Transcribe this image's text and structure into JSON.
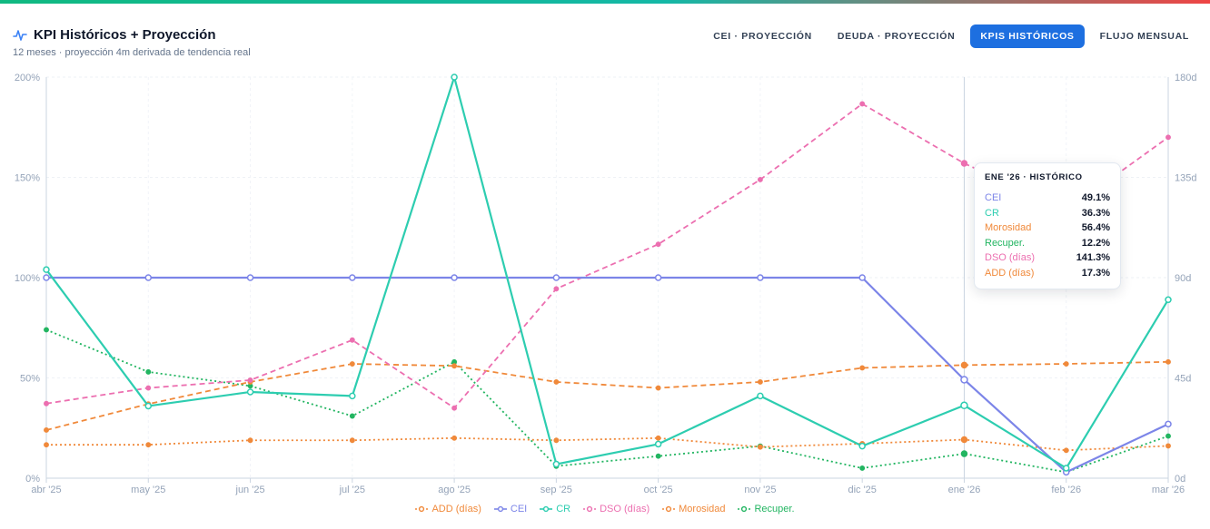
{
  "header": {
    "title": "KPI Históricos + Proyección",
    "subtitle": "12 meses · proyección 4m derivada de tendencia real",
    "title_icon": "activity-icon"
  },
  "tabs": [
    {
      "label": "CEI · PROYECCIÓN",
      "active": false
    },
    {
      "label": "DEUDA · PROYECCIÓN",
      "active": false
    },
    {
      "label": "KPIS HISTÓRICOS",
      "active": true
    },
    {
      "label": "FLUJO MENSUAL",
      "active": false
    }
  ],
  "colors": {
    "accent": "#1d6fe0"
  },
  "chart_data": {
    "type": "line",
    "categories": [
      "abr '25",
      "may '25",
      "jun '25",
      "jul '25",
      "ago '25",
      "sep '25",
      "oct '25",
      "nov '25",
      "dic '25",
      "ene '26",
      "feb '26",
      "mar '26"
    ],
    "y_left": {
      "ticks": [
        "0%",
        "50%",
        "100%",
        "150%",
        "200%"
      ],
      "range": [
        0,
        200
      ]
    },
    "y_right": {
      "ticks": [
        "0d",
        "45d",
        "90d",
        "135d",
        "180d"
      ],
      "range": [
        0,
        180
      ]
    },
    "grid": true,
    "legend_position": "bottom",
    "highlight_index": 9,
    "series": [
      {
        "name": "ADD (días)",
        "axis": "right",
        "color": "#f0893a",
        "style": "dotted",
        "values": [
          15,
          15,
          17,
          17,
          18,
          17,
          18,
          14,
          15.5,
          17.3,
          12.5,
          14.5
        ]
      },
      {
        "name": "CEI",
        "axis": "left",
        "color": "#7c85e8",
        "style": "solid",
        "values": [
          100,
          100,
          100,
          100,
          100,
          100,
          100,
          100,
          100,
          49.1,
          3,
          27
        ]
      },
      {
        "name": "CR",
        "axis": "left",
        "color": "#2dcdb0",
        "style": "solid",
        "values": [
          104,
          36,
          43,
          41,
          200,
          7,
          17,
          41,
          16,
          36.3,
          5,
          89
        ]
      },
      {
        "name": "DSO (días)",
        "axis": "right",
        "color": "#ec6fb0",
        "style": "dashed",
        "values": [
          33.5,
          40.5,
          44,
          62,
          31.5,
          85,
          105,
          134,
          168,
          141.3,
          120,
          153
        ]
      },
      {
        "name": "Morosidad",
        "axis": "left",
        "color": "#f0893a",
        "style": "dashed",
        "values": [
          24,
          37,
          48,
          57,
          56,
          48,
          45,
          48,
          55,
          56.4,
          57,
          58
        ]
      },
      {
        "name": "Recuper.",
        "axis": "left",
        "color": "#22b561",
        "style": "dotted",
        "values": [
          74,
          53,
          46,
          31,
          58,
          6,
          11,
          16,
          5,
          12.2,
          3,
          21
        ]
      }
    ]
  },
  "tooltip": {
    "title": "ENE '26 · HISTÓRICO",
    "rows": [
      {
        "label": "CEI",
        "value": "49.1%",
        "color": "#7c85e8"
      },
      {
        "label": "CR",
        "value": "36.3%",
        "color": "#2dcdb0"
      },
      {
        "label": "Morosidad",
        "value": "56.4%",
        "color": "#f0893a"
      },
      {
        "label": "Recuper.",
        "value": "12.2%",
        "color": "#22b561"
      },
      {
        "label": "DSO (días)",
        "value": "141.3%",
        "color": "#ec6fb0"
      },
      {
        "label": "ADD (días)",
        "value": "17.3%",
        "color": "#f0893a"
      }
    ]
  }
}
